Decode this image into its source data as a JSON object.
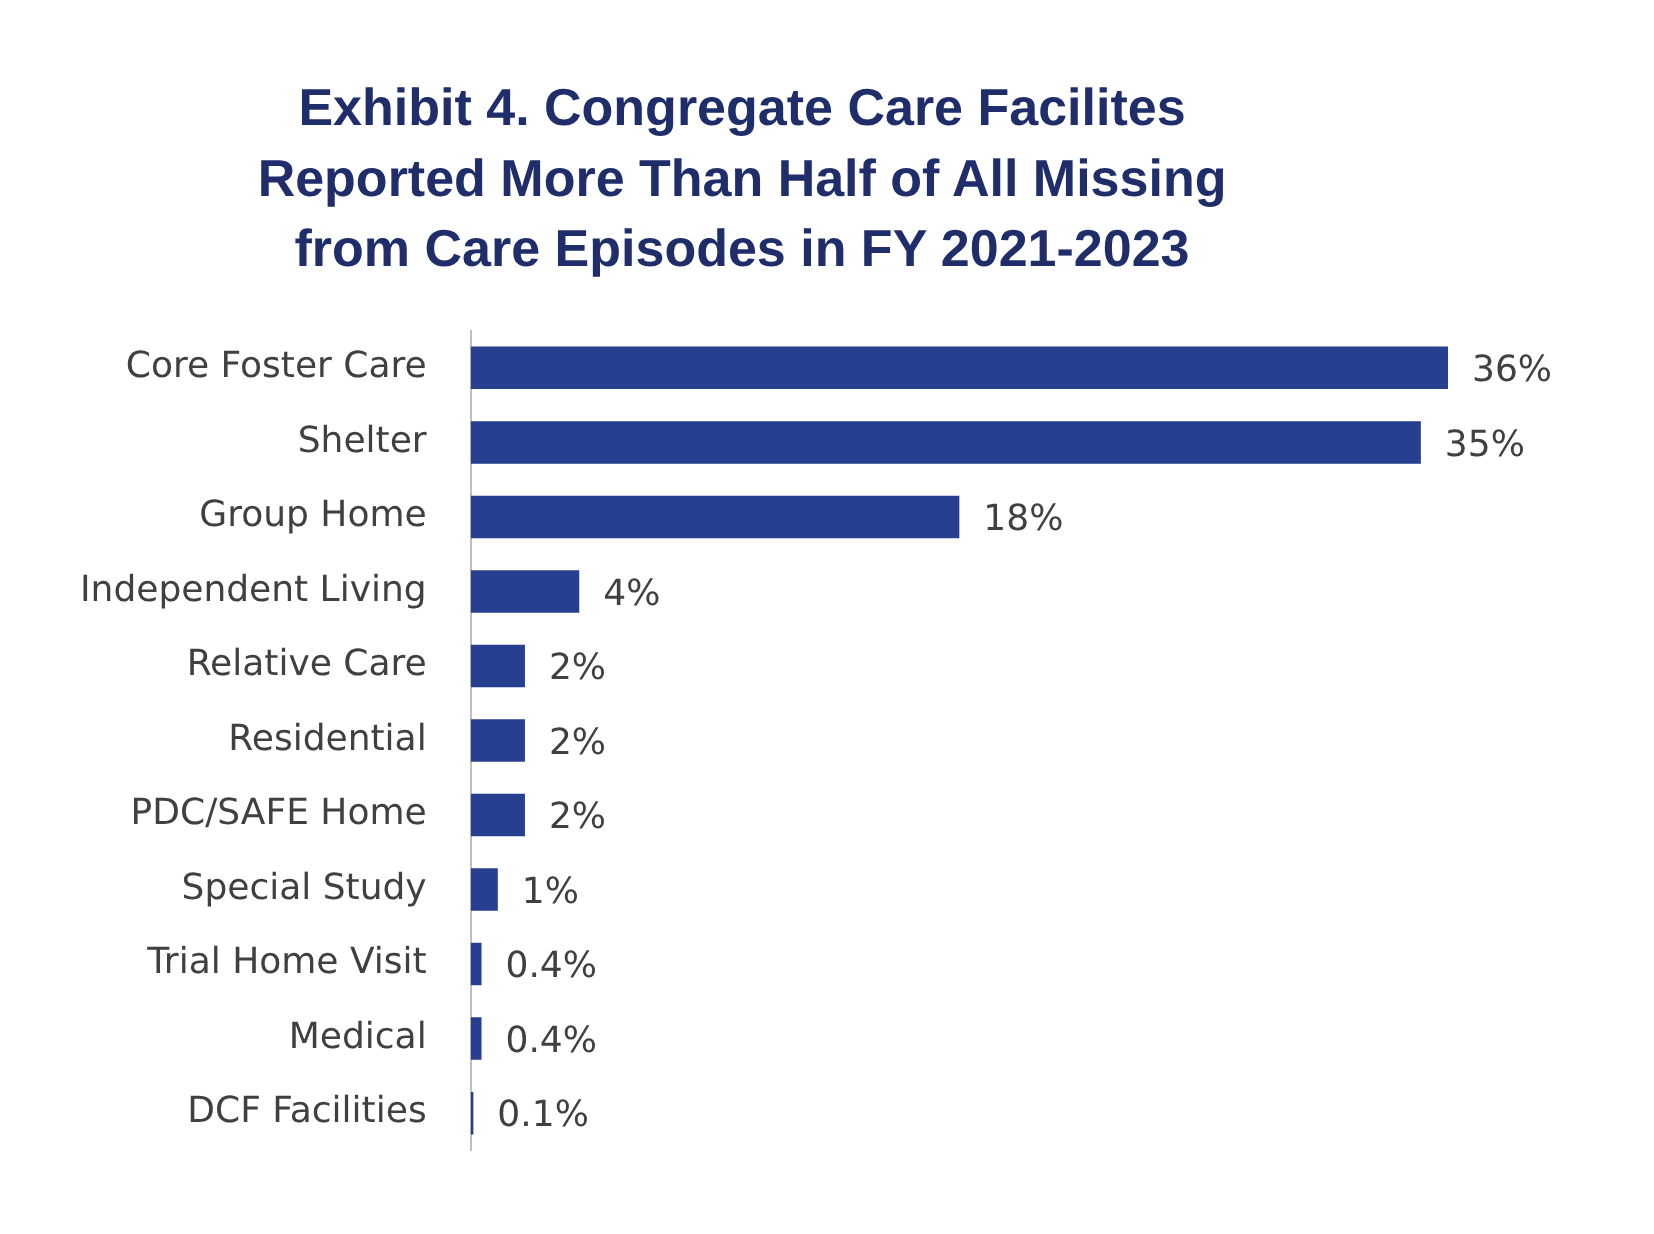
{
  "chart_data": {
    "type": "bar",
    "orientation": "horizontal",
    "title": "Exhibit 4. Congregate Care Facilites Reported More Than Half of All Missing from Care Episodes in FY 2021-2023",
    "categories": [
      "Core Foster Care",
      "Shelter",
      "Group Home",
      "Independent Living",
      "Relative Care",
      "Residential",
      "PDC/SAFE Home",
      "Special Study",
      "Trial Home Visit",
      "Medical",
      "DCF Facilities"
    ],
    "values": [
      36,
      35,
      18,
      4,
      2,
      2,
      2,
      1,
      0.4,
      0.4,
      0.1
    ],
    "value_labels": [
      "36%",
      "35%",
      "18%",
      "4%",
      "2%",
      "2%",
      "2%",
      "1%",
      "0.4%",
      "0.4%",
      "0.1%"
    ],
    "color": "#263f8e"
  }
}
